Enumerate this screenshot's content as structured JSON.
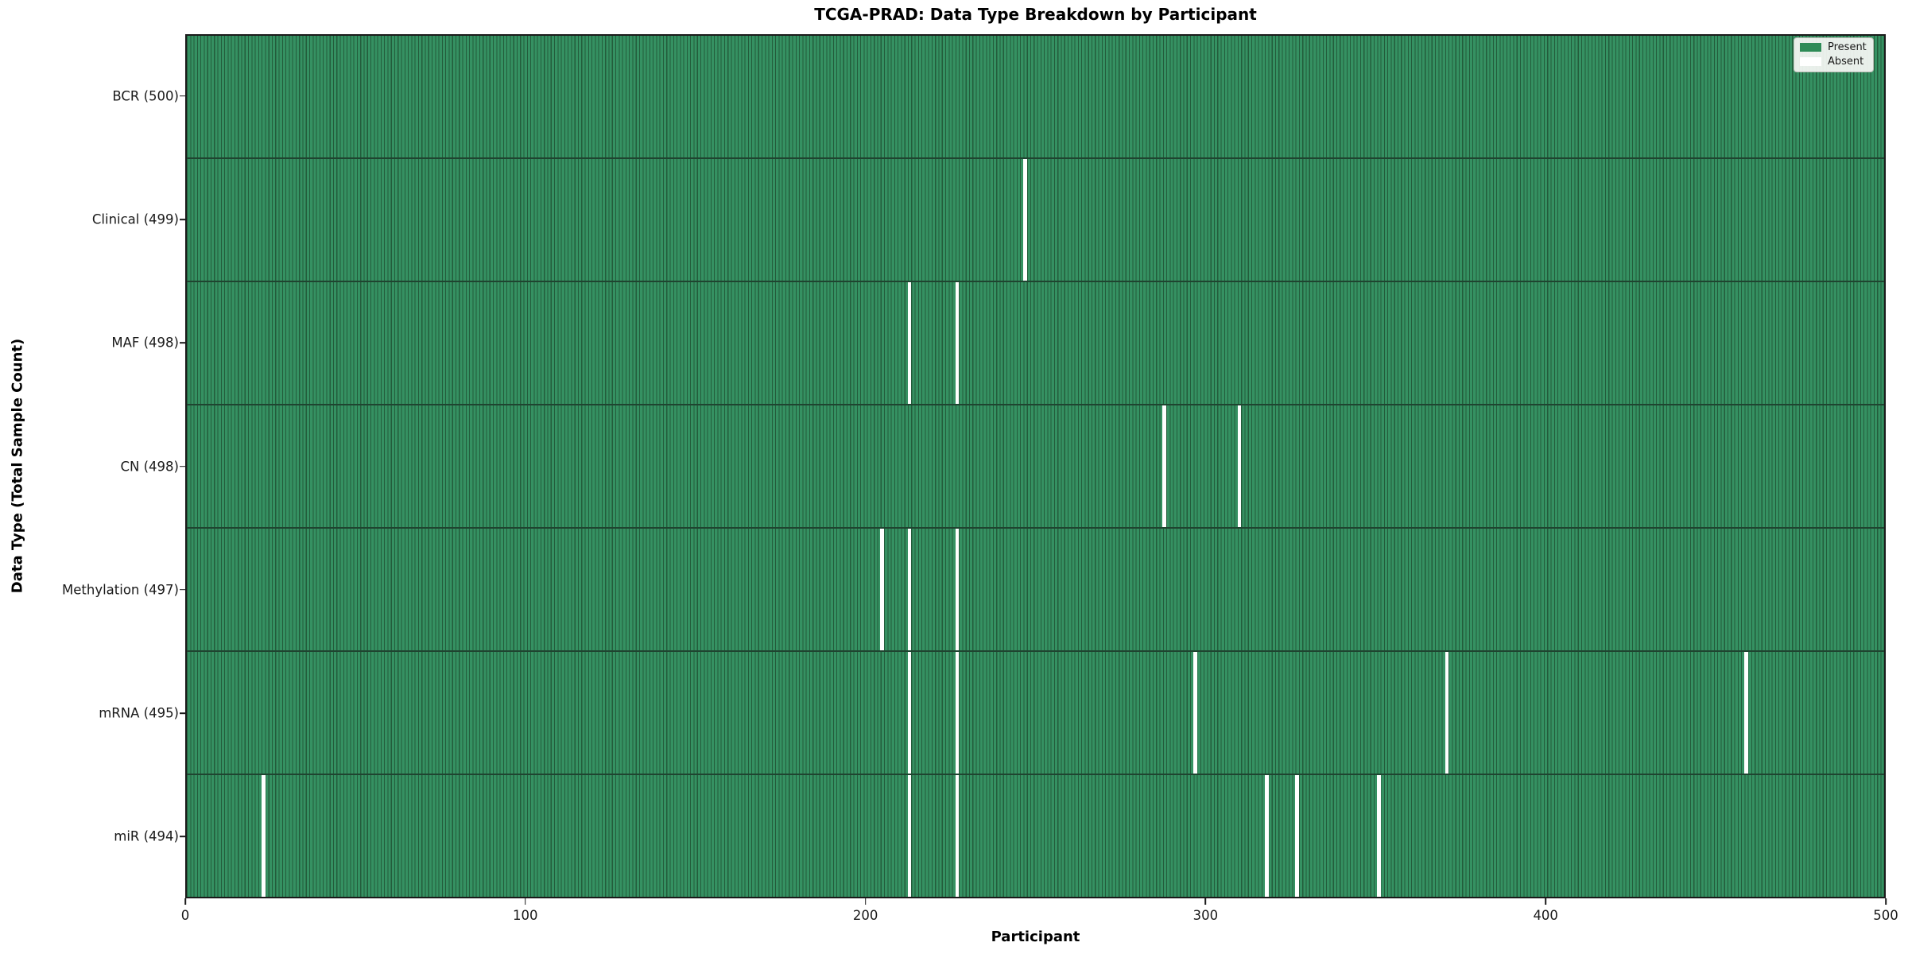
{
  "chart_data": {
    "type": "heatmap",
    "title": "TCGA-PRAD: Data Type Breakdown by Participant",
    "xlabel": "Participant",
    "ylabel": "Data Type (Total Sample Count)",
    "x_ticks": [
      0,
      100,
      200,
      300,
      400,
      500
    ],
    "xlim": [
      0,
      500
    ],
    "n_participants": 500,
    "grid": false,
    "legend_position": "upper right",
    "legend_entries": [
      {
        "label": "Present",
        "color": "#2e8b57"
      },
      {
        "label": "Absent",
        "color": "#ffffff"
      }
    ],
    "rows": [
      {
        "data_type": "BCR",
        "label": "BCR (500)",
        "total_samples": 500,
        "absent_participants": []
      },
      {
        "data_type": "Clinical",
        "label": "Clinical (499)",
        "total_samples": 499,
        "absent_participants": [
          246
        ]
      },
      {
        "data_type": "MAF",
        "label": "MAF (498)",
        "total_samples": 498,
        "absent_participants": [
          212,
          226
        ]
      },
      {
        "data_type": "CN",
        "label": "CN (498)",
        "total_samples": 498,
        "absent_participants": [
          287,
          309
        ]
      },
      {
        "data_type": "Methylation",
        "label": "Methylation (497)",
        "total_samples": 497,
        "absent_participants": [
          204,
          212,
          226
        ]
      },
      {
        "data_type": "mRNA",
        "label": "mRNA (495)",
        "total_samples": 495,
        "absent_participants": [
          212,
          226,
          296,
          370,
          458
        ]
      },
      {
        "data_type": "miR",
        "label": "miR (494)",
        "total_samples": 494,
        "absent_participants": [
          22,
          212,
          226,
          317,
          326,
          350
        ]
      }
    ],
    "colors": {
      "present_fill": "#359162",
      "bar_edge": "#235c3b",
      "absent_fill": "#ffffff",
      "row_divider": "#1f4430",
      "legend_present": "#2e8b57"
    }
  }
}
